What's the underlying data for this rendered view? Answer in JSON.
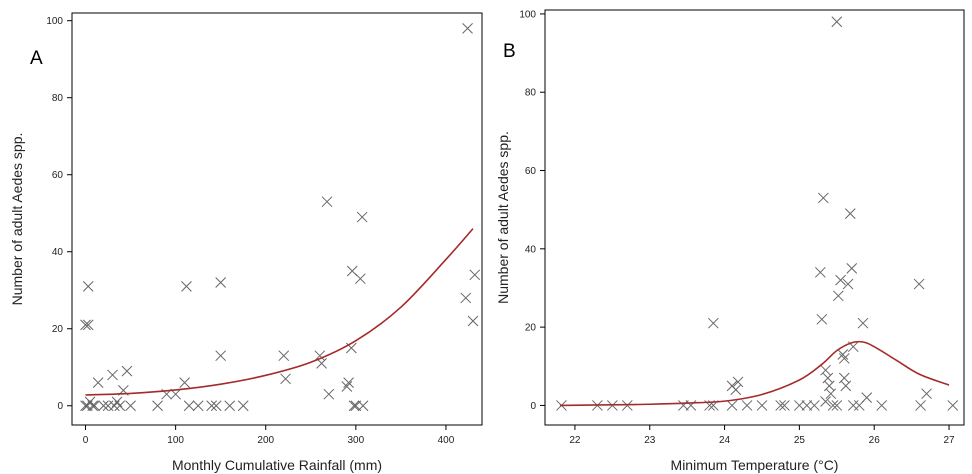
{
  "chart_data": [
    {
      "type": "scatter",
      "panel_label": "A",
      "xlabel": "Monthly Cumulative Rainfall (mm)",
      "ylabel": "Number of adult Aedes spp.",
      "xlim": [
        -15,
        440
      ],
      "ylim": [
        -5,
        102
      ],
      "xticks": [
        0,
        100,
        200,
        300,
        400
      ],
      "yticks": [
        0,
        20,
        40,
        60,
        80,
        100
      ],
      "grid": false,
      "marker_color": "#666666",
      "fit_color": "#a52a2a",
      "points": [
        [
          0,
          21
        ],
        [
          3,
          21
        ],
        [
          3,
          31
        ],
        [
          0,
          0
        ],
        [
          2,
          0
        ],
        [
          5,
          1
        ],
        [
          8,
          0
        ],
        [
          10,
          0
        ],
        [
          14,
          6
        ],
        [
          20,
          0
        ],
        [
          25,
          0
        ],
        [
          30,
          8
        ],
        [
          32,
          0
        ],
        [
          35,
          1
        ],
        [
          38,
          0
        ],
        [
          42,
          4
        ],
        [
          46,
          9
        ],
        [
          50,
          0
        ],
        [
          80,
          0
        ],
        [
          90,
          3
        ],
        [
          100,
          3
        ],
        [
          110,
          6
        ],
        [
          112,
          31
        ],
        [
          115,
          0
        ],
        [
          125,
          0
        ],
        [
          140,
          0
        ],
        [
          145,
          0
        ],
        [
          150,
          32
        ],
        [
          150,
          13
        ],
        [
          160,
          0
        ],
        [
          175,
          0
        ],
        [
          220,
          13
        ],
        [
          222,
          7
        ],
        [
          260,
          13
        ],
        [
          262,
          11
        ],
        [
          268,
          53
        ],
        [
          270,
          3
        ],
        [
          290,
          5
        ],
        [
          292,
          6
        ],
        [
          295,
          15
        ],
        [
          296,
          35
        ],
        [
          298,
          0
        ],
        [
          300,
          0
        ],
        [
          305,
          33
        ],
        [
          307,
          49
        ],
        [
          308,
          0
        ],
        [
          422,
          28
        ],
        [
          424,
          98
        ],
        [
          430,
          22
        ],
        [
          432,
          34
        ]
      ],
      "fit": {
        "x": [
          0,
          50,
          100,
          150,
          200,
          250,
          300,
          350,
          400,
          430
        ],
        "y": [
          2.8,
          3.2,
          4.1,
          5.6,
          7.9,
          11.3,
          16.9,
          25.6,
          38.0,
          46.0
        ]
      }
    },
    {
      "type": "scatter",
      "panel_label": "B",
      "xlabel": "Minimum Temperature (°C)",
      "ylabel": "Number of adult Aedes spp.",
      "xlim": [
        21.6,
        27.2
      ],
      "ylim": [
        -5,
        101
      ],
      "xticks": [
        22,
        23,
        24,
        25,
        26,
        27
      ],
      "yticks": [
        0,
        20,
        40,
        60,
        80,
        100
      ],
      "grid": false,
      "marker_color": "#666666",
      "fit_color": "#a52a2a",
      "points": [
        [
          21.82,
          0
        ],
        [
          22.3,
          0
        ],
        [
          22.5,
          0
        ],
        [
          22.7,
          0
        ],
        [
          23.45,
          0
        ],
        [
          23.55,
          0
        ],
        [
          23.8,
          0
        ],
        [
          23.85,
          0
        ],
        [
          23.85,
          21
        ],
        [
          24.1,
          5
        ],
        [
          24.15,
          4
        ],
        [
          24.18,
          6
        ],
        [
          24.1,
          0
        ],
        [
          24.3,
          0
        ],
        [
          24.5,
          0
        ],
        [
          24.75,
          0
        ],
        [
          24.8,
          0
        ],
        [
          25.0,
          0
        ],
        [
          25.1,
          0
        ],
        [
          25.2,
          0
        ],
        [
          25.28,
          34
        ],
        [
          25.3,
          22
        ],
        [
          25.32,
          53
        ],
        [
          25.35,
          9
        ],
        [
          25.35,
          1
        ],
        [
          25.38,
          7
        ],
        [
          25.4,
          5
        ],
        [
          25.42,
          3
        ],
        [
          25.45,
          0
        ],
        [
          25.5,
          0
        ],
        [
          25.5,
          98
        ],
        [
          25.52,
          28
        ],
        [
          25.55,
          32
        ],
        [
          25.58,
          13
        ],
        [
          25.6,
          12
        ],
        [
          25.6,
          7
        ],
        [
          25.62,
          5
        ],
        [
          25.65,
          31
        ],
        [
          25.68,
          49
        ],
        [
          25.7,
          35
        ],
        [
          25.72,
          15
        ],
        [
          25.72,
          0
        ],
        [
          25.8,
          0
        ],
        [
          25.85,
          21
        ],
        [
          25.9,
          2
        ],
        [
          26.1,
          0
        ],
        [
          26.6,
          31
        ],
        [
          26.62,
          0
        ],
        [
          26.7,
          3
        ],
        [
          27.05,
          0
        ]
      ],
      "fit": {
        "x": [
          21.8,
          22.5,
          23.0,
          23.5,
          24.0,
          24.5,
          25.0,
          25.3,
          25.5,
          25.7,
          25.85,
          26.0,
          26.3,
          26.6,
          27.0
        ],
        "y": [
          0,
          0.15,
          0.3,
          0.6,
          1.1,
          2.8,
          6.5,
          10.5,
          14.0,
          16.0,
          16.2,
          15.0,
          11.5,
          8.0,
          5.2
        ]
      }
    }
  ]
}
